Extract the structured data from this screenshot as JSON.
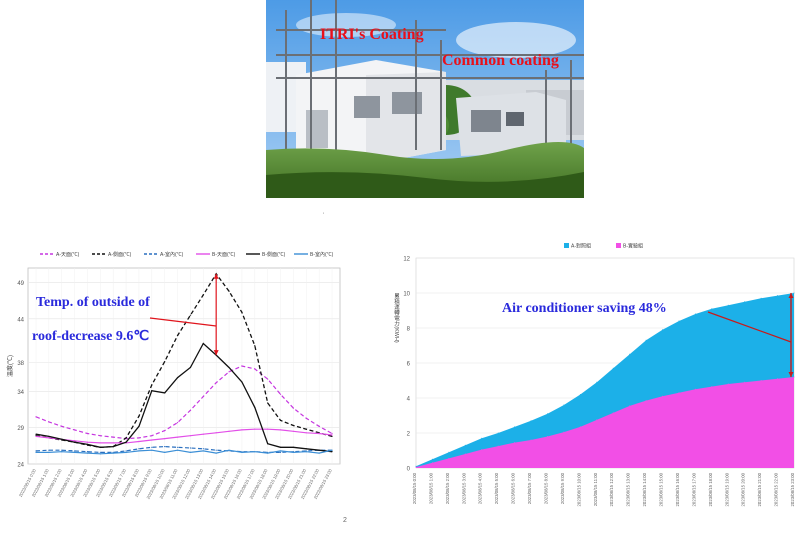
{
  "photo": {
    "label_itri": "ITRI's Coating",
    "label_common": "Common coating"
  },
  "page_number": "2",
  "chart_data": [
    {
      "type": "line",
      "title": "",
      "xlabel": "",
      "ylabel": "溫度(℃)",
      "ylim": [
        24,
        51
      ],
      "yticks": [
        24,
        29,
        34,
        38,
        44,
        49
      ],
      "grid": true,
      "legend_position": "top",
      "x": [
        "2023/08/15 0:00",
        "2023/08/15 1:00",
        "2023/08/15 2:00",
        "2023/08/15 3:00",
        "2023/08/15 4:00",
        "2023/08/15 5:00",
        "2023/08/15 6:00",
        "2023/08/15 7:00",
        "2023/08/15 8:00",
        "2023/08/15 9:00",
        "2023/08/15 10:00",
        "2023/08/15 11:00",
        "2023/08/15 12:00",
        "2023/08/15 13:00",
        "2023/08/15 14:00",
        "2023/08/15 15:00",
        "2023/08/15 16:00",
        "2023/08/15 17:00",
        "2023/08/15 18:00",
        "2023/08/15 19:00",
        "2023/08/15 20:00",
        "2023/08/15 21:00",
        "2023/08/15 22:00",
        "2023/08/15 23:00"
      ],
      "series": [
        {
          "name": "A-天面(℃)",
          "color": "#c637e0",
          "dash": "dashed",
          "values": [
            30.5,
            29.8,
            29.2,
            28.7,
            28.2,
            27.9,
            27.7,
            27.5,
            27.6,
            27.9,
            28.6,
            29.7,
            31.4,
            33.3,
            35.2,
            36.7,
            37.5,
            37.1,
            35.7,
            33.6,
            31.7,
            30.3,
            29.2,
            28.2
          ]
        },
        {
          "name": "A-側面(℃)",
          "color": "#111111",
          "dash": "dashed",
          "values": [
            27.9,
            27.6,
            27.3,
            27.0,
            26.6,
            26.3,
            26.4,
            27.6,
            30.6,
            34.9,
            38.1,
            41.7,
            44.5,
            47.3,
            50.2,
            47.8,
            44.9,
            40.3,
            32.4,
            30.0,
            29.3,
            28.8,
            28.3,
            27.8
          ]
        },
        {
          "name": "A-室內(℃)",
          "color": "#2a6fbf",
          "dash": "dashed",
          "values": [
            25.8,
            25.9,
            25.9,
            25.8,
            25.7,
            25.6,
            25.6,
            25.8,
            26.1,
            26.3,
            26.4,
            26.3,
            26.2,
            26.1,
            25.9,
            25.8,
            25.7,
            25.7,
            25.6,
            25.6,
            25.7,
            25.8,
            25.9,
            25.9
          ]
        },
        {
          "name": "B-天面(℃)",
          "color": "#e24fe8",
          "dash": "solid",
          "values": [
            27.8,
            27.6,
            27.4,
            27.2,
            27.0,
            26.9,
            26.9,
            26.9,
            27.1,
            27.3,
            27.5,
            27.7,
            27.9,
            28.1,
            28.3,
            28.5,
            28.7,
            28.8,
            28.8,
            28.7,
            28.5,
            28.3,
            28.2,
            28.0
          ]
        },
        {
          "name": "B-側面(℃)",
          "color": "#111111",
          "dash": "solid",
          "values": [
            28.1,
            27.8,
            27.4,
            27.0,
            26.7,
            26.3,
            26.4,
            27.0,
            29.2,
            34.1,
            33.8,
            35.9,
            37.3,
            40.6,
            39.0,
            37.3,
            35.3,
            31.8,
            26.8,
            26.3,
            26.3,
            26.1,
            25.9,
            25.7
          ]
        },
        {
          "name": "B-室內(℃)",
          "color": "#3c8fd6",
          "dash": "solid",
          "values": [
            25.6,
            25.6,
            25.7,
            25.6,
            25.5,
            25.4,
            25.5,
            25.6,
            25.8,
            25.9,
            25.6,
            25.9,
            25.6,
            25.8,
            25.5,
            25.9,
            25.6,
            25.7,
            25.5,
            25.8,
            25.6,
            25.7,
            25.5,
            25.9
          ]
        }
      ],
      "annotations": [
        {
          "text": "Temp. of outside of",
          "color": "#2a2adc"
        },
        {
          "text": "roof-decrease  9.6℃",
          "color": "#2a2adc"
        }
      ]
    },
    {
      "type": "area",
      "title": "",
      "xlabel": "",
      "ylabel": "累積運轉電力(KWH)",
      "ylim": [
        0,
        12
      ],
      "yticks": [
        0,
        2,
        4,
        6,
        8,
        10,
        12
      ],
      "grid": true,
      "legend_position": "top",
      "x": [
        "2023/08/15 0:00",
        "2023/08/15 1:00",
        "2023/08/15 2:00",
        "2023/08/15 3:00",
        "2023/08/15 4:00",
        "2023/08/15 5:00",
        "2023/08/15 6:00",
        "2023/08/15 7:00",
        "2023/08/15 8:00",
        "2023/08/15 9:00",
        "2023/08/15 10:00",
        "2023/08/15 11:00",
        "2023/08/15 12:00",
        "2023/08/15 13:00",
        "2023/08/15 14:00",
        "2023/08/15 15:00",
        "2023/08/15 16:00",
        "2023/08/15 17:00",
        "2023/08/15 18:00",
        "2023/08/15 19:00",
        "2023/08/15 20:00",
        "2023/08/15 21:00",
        "2023/08/15 22:00",
        "2023/08/15 23:00"
      ],
      "series": [
        {
          "name": "A-對照組",
          "color": "#1cb0e8",
          "values": [
            0.1,
            0.5,
            0.9,
            1.3,
            1.7,
            2.0,
            2.35,
            2.7,
            3.1,
            3.6,
            4.2,
            4.9,
            5.7,
            6.5,
            7.3,
            7.9,
            8.4,
            8.8,
            9.1,
            9.3,
            9.5,
            9.7,
            9.85,
            10.0
          ]
        },
        {
          "name": "B-實驗組",
          "color": "#f24fe6",
          "values": [
            0.05,
            0.3,
            0.55,
            0.8,
            1.05,
            1.25,
            1.45,
            1.6,
            1.8,
            2.05,
            2.35,
            2.75,
            3.15,
            3.55,
            3.85,
            4.1,
            4.3,
            4.5,
            4.65,
            4.8,
            4.9,
            5.0,
            5.1,
            5.2
          ]
        }
      ],
      "annotations": [
        {
          "text": "Air conditioner saving 48%",
          "color": "#2a2adc"
        }
      ]
    }
  ]
}
